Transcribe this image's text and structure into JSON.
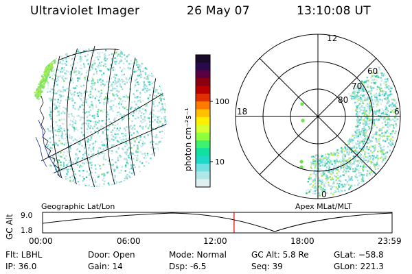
{
  "header": {
    "title": "Ultraviolet Imager",
    "date": "26 May 07",
    "time": "13:10:08 UT"
  },
  "colorbar": {
    "unit_label": "photon cm⁻²s⁻¹",
    "ticks": [
      "100",
      "10"
    ],
    "colors": [
      "#1a0a2a",
      "#2a0a4a",
      "#5a0040",
      "#8a0010",
      "#b80000",
      "#e03000",
      "#ff7a00",
      "#ffc000",
      "#fff000",
      "#d8ff30",
      "#90ff40",
      "#40f070",
      "#10e0a0",
      "#20d8c8",
      "#70e0e0",
      "#b0e8e8",
      "#e0f0f0"
    ]
  },
  "left_panel": {
    "label": "Geographic Lat/Lon"
  },
  "right_panel": {
    "label": "Apex MLat/MLT",
    "mlt_labels": [
      "12",
      "18",
      "6",
      "0"
    ],
    "lat_labels": [
      "60",
      "70",
      "80"
    ]
  },
  "altitude_plot": {
    "ylabel": "GC Alt",
    "yticks": [
      "9.0",
      "1.8"
    ],
    "xticks": [
      "00:00",
      "06:00",
      "12:00",
      "18:00",
      "23:59"
    ],
    "current_time_fraction": 0.548
  },
  "info": {
    "flt": "Flt: LBHL",
    "ip": "IP: 36.0",
    "door": "Door: Open",
    "gain": "Gain: 14",
    "mode": "Mode: Normal",
    "dsp": "Dsp:    -6.5",
    "gcalt": "GC Alt: 5.8 Re",
    "seq": "Seq: 39",
    "glat": "GLat: −58.8",
    "glon": "GLon: 221.3"
  }
}
